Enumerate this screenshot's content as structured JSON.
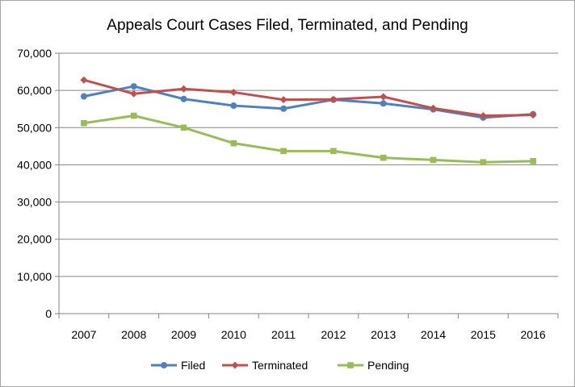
{
  "chart_data": {
    "type": "line",
    "title": "Appeals Court Cases Filed, Terminated, and Pending",
    "xlabel": "",
    "ylabel": "",
    "categories": [
      "2007",
      "2008",
      "2009",
      "2010",
      "2011",
      "2012",
      "2013",
      "2014",
      "2015",
      "2016"
    ],
    "ylim": [
      0,
      70000
    ],
    "yticks": [
      0,
      10000,
      20000,
      30000,
      40000,
      50000,
      60000,
      70000
    ],
    "ytick_labels": [
      "0",
      "10,000",
      "20,000",
      "30,000",
      "40,000",
      "50,000",
      "60,000",
      "70,000"
    ],
    "grid": true,
    "legend_position": "bottom",
    "series": [
      {
        "name": "Filed",
        "color": "#4f81bd",
        "marker": "circle",
        "values": [
          58400,
          61100,
          57700,
          55900,
          55100,
          57500,
          56500,
          54900,
          52700,
          53600
        ]
      },
      {
        "name": "Terminated",
        "color": "#c0504d",
        "marker": "diamond",
        "values": [
          62800,
          59100,
          60400,
          59500,
          57500,
          57600,
          58300,
          55200,
          53200,
          53400
        ]
      },
      {
        "name": "Pending",
        "color": "#9bbb59",
        "marker": "square",
        "values": [
          51200,
          53200,
          50000,
          45800,
          43700,
          43700,
          41900,
          41300,
          40700,
          41000
        ]
      }
    ]
  }
}
